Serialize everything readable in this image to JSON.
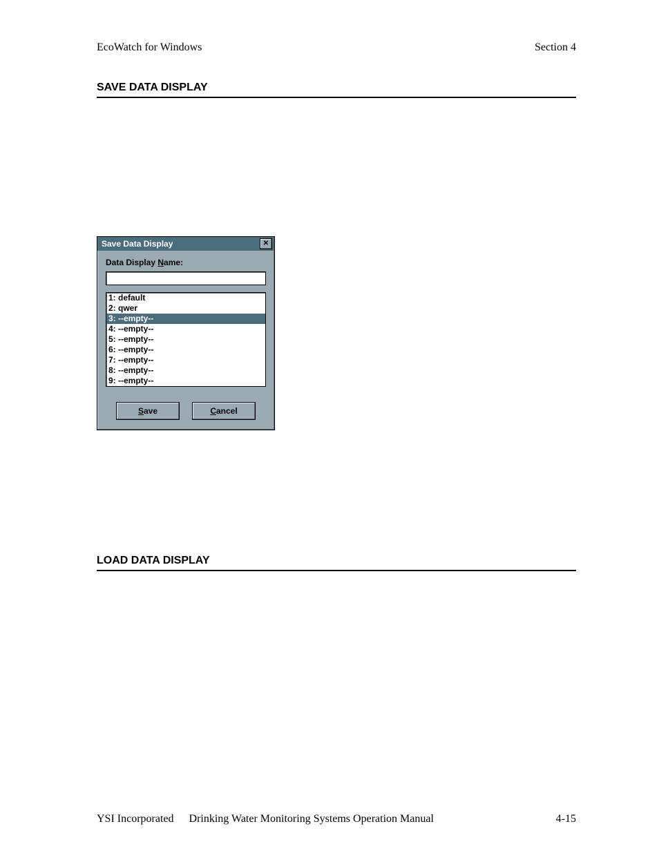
{
  "header": {
    "left": "EcoWatch for Windows",
    "right": "Section 4"
  },
  "sections": {
    "save_heading": "SAVE DATA DISPLAY",
    "load_heading": "LOAD DATA DISPLAY"
  },
  "dialog": {
    "title": "Save Data Display",
    "close_glyph": "✕",
    "field_label_pre": "Data Display ",
    "field_label_u": "N",
    "field_label_post": "ame:",
    "input_value": "",
    "colors": {
      "titlebar_bg": "#4b6c7d",
      "dialog_bg": "#9aaab5",
      "selected_bg": "#4b6c7d"
    },
    "items": [
      {
        "label": "1:  default",
        "selected": false
      },
      {
        "label": "2:  qwer",
        "selected": false
      },
      {
        "label": "3:  --empty--",
        "selected": true
      },
      {
        "label": "4:  --empty--",
        "selected": false
      },
      {
        "label": "5:  --empty--",
        "selected": false
      },
      {
        "label": "6:  --empty--",
        "selected": false
      },
      {
        "label": "7:  --empty--",
        "selected": false
      },
      {
        "label": "8:  --empty--",
        "selected": false
      },
      {
        "label": "9:  --empty--",
        "selected": false
      }
    ],
    "buttons": {
      "save_u": "S",
      "save_rest": "ave",
      "cancel_u": "C",
      "cancel_rest": "ancel"
    }
  },
  "footer": {
    "company": "YSI Incorporated",
    "manual": "Drinking Water Monitoring Systems Operation Manual",
    "pagenum": "4-15"
  }
}
